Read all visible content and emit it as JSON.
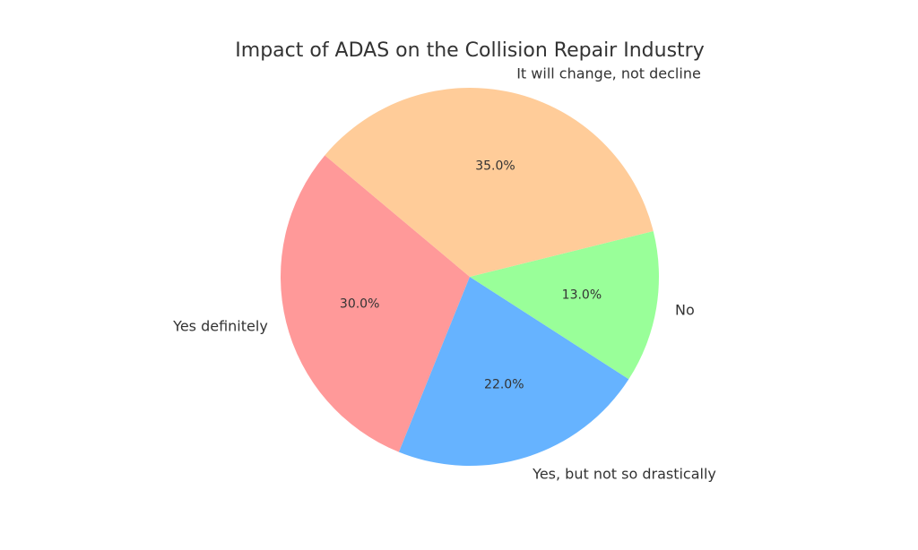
{
  "chart_data": {
    "type": "pie",
    "title": "Impact of ADAS on the Collision Repair Industry",
    "categories": [
      "Yes definitely",
      "Yes, but not so drastically",
      "No",
      "It will change, not decline"
    ],
    "values": [
      30,
      22,
      13,
      35
    ],
    "value_labels": [
      "30.0%",
      "22.0%",
      "13.0%",
      "35.0%"
    ],
    "colors": [
      "#ff9999",
      "#66b3ff",
      "#99ff99",
      "#ffcc99"
    ]
  }
}
